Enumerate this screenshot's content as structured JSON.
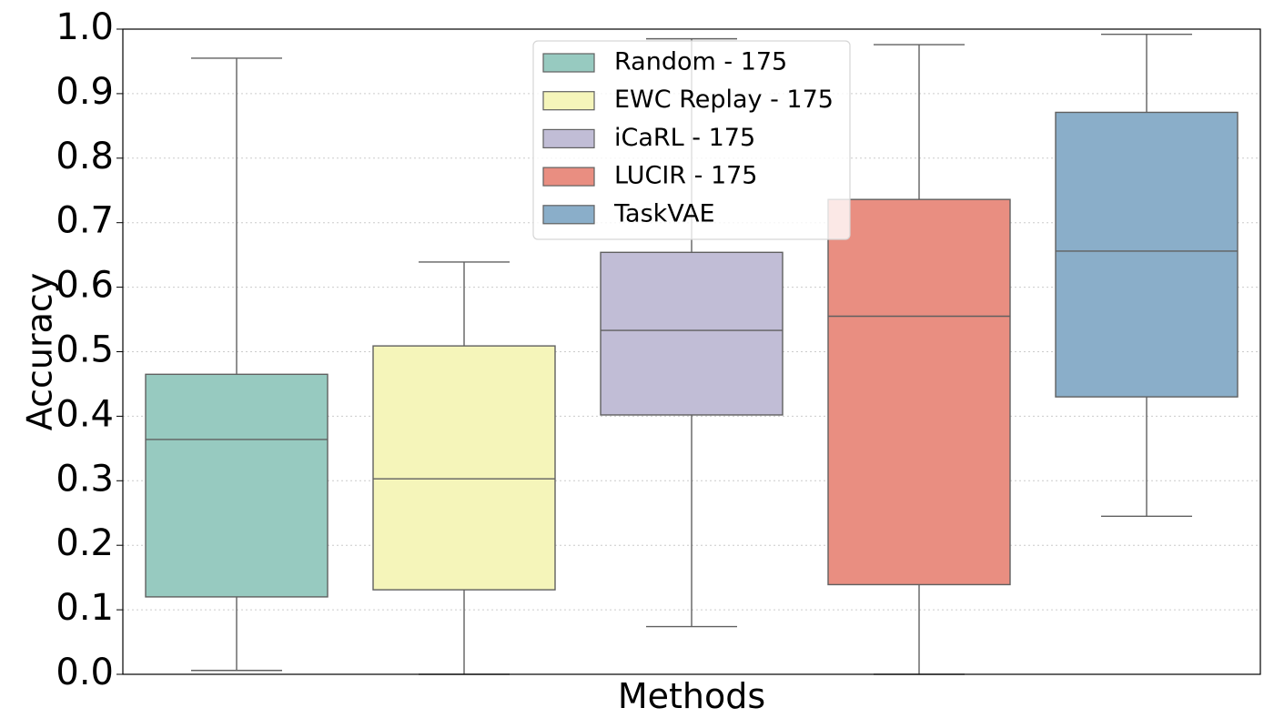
{
  "chart_data": {
    "type": "box",
    "xlabel": "Methods",
    "ylabel": "Accuracy",
    "ylim": [
      0,
      1
    ],
    "yticks": [
      "0.0",
      "0.1",
      "0.2",
      "0.3",
      "0.4",
      "0.5",
      "0.6",
      "0.7",
      "0.8",
      "0.9",
      "1.0"
    ],
    "grid": "horizontal dotted",
    "legend_position": "top-center",
    "series": [
      {
        "name": "Random - 175",
        "color": "#97cac0",
        "min": 0.006,
        "q1": 0.12,
        "median": 0.364,
        "q3": 0.465,
        "max": 0.955
      },
      {
        "name": "EWC Replay - 175",
        "color": "#f5f5ba",
        "min": 0.0,
        "q1": 0.131,
        "median": 0.303,
        "q3": 0.509,
        "max": 0.639
      },
      {
        "name": "iCaRL - 175",
        "color": "#c1bdd6",
        "min": 0.074,
        "q1": 0.402,
        "median": 0.533,
        "q3": 0.654,
        "max": 0.985
      },
      {
        "name": "LUCIR - 175",
        "color": "#e98e81",
        "min": 0.0,
        "q1": 0.139,
        "median": 0.555,
        "q3": 0.736,
        "max": 0.976
      },
      {
        "name": "TaskVAE",
        "color": "#8aaec9",
        "min": 0.245,
        "q1": 0.43,
        "median": 0.656,
        "q3": 0.871,
        "max": 0.992
      }
    ]
  }
}
